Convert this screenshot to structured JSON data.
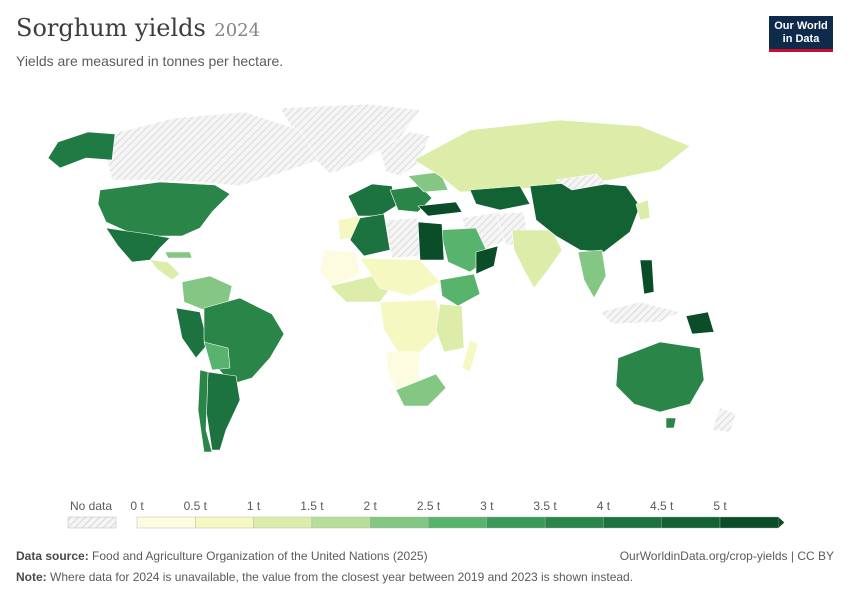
{
  "header": {
    "title": "Sorghum yields",
    "year": "2024",
    "subtitle": "Yields are measured in tonnes per hectare.",
    "logo_line1": "Our World",
    "logo_line2": "in Data"
  },
  "legend": {
    "no_data_label": "No data",
    "bins": [
      {
        "label": "0 t",
        "color": "#fdfce0"
      },
      {
        "label": "0.5 t",
        "color": "#f5f8c1"
      },
      {
        "label": "1 t",
        "color": "#dcedaa"
      },
      {
        "label": "1.5 t",
        "color": "#b6de98"
      },
      {
        "label": "2 t",
        "color": "#84c784"
      },
      {
        "label": "2.5 t",
        "color": "#58b36c"
      },
      {
        "label": "3 t",
        "color": "#3a9a57"
      },
      {
        "label": "3.5 t",
        "color": "#2a8549"
      },
      {
        "label": "4 t",
        "color": "#1d733f"
      },
      {
        "label": "4.5 t",
        "color": "#126234"
      },
      {
        "label": "5 t",
        "color": "#0a4d28"
      }
    ]
  },
  "footer": {
    "source_label": "Data source:",
    "source_text": "Food and Agriculture Organization of the United Nations (2025)",
    "url": "OurWorldinData.org/crop-yields | CC BY",
    "note_label": "Note:",
    "note_text": "Where data for 2024 is unavailable, the value from the closest year between 2019 and 2023 is shown instead."
  },
  "colors": {
    "no_data": "#ececec",
    "title": "#3d3d3d",
    "logo_bg": "#0f2b4c",
    "logo_accent": "#c8102e"
  }
}
